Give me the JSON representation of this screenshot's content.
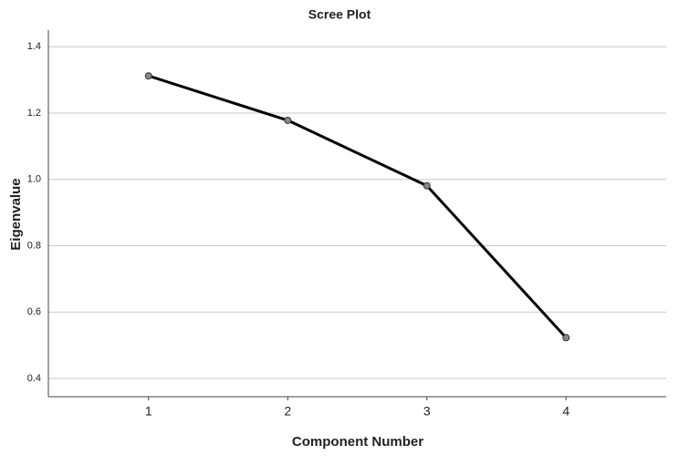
{
  "chart_data": {
    "type": "line",
    "title": "Scree Plot",
    "xlabel": "Component Number",
    "ylabel": "Eigenvalue",
    "x": [
      1,
      2,
      3,
      4
    ],
    "series": [
      {
        "color": "#000000",
        "values": [
          1.312,
          1.178,
          0.981,
          0.523
        ]
      }
    ],
    "xlim": [
      0.28,
      4.72
    ],
    "xticks": [
      1,
      2,
      3,
      4
    ],
    "ylim": [
      0.345,
      1.45
    ],
    "yticks": [
      0.4,
      0.6,
      0.8,
      {
        "value": 1,
        "label": "1.0"
      },
      1.2,
      1.4
    ],
    "grid": true
  }
}
